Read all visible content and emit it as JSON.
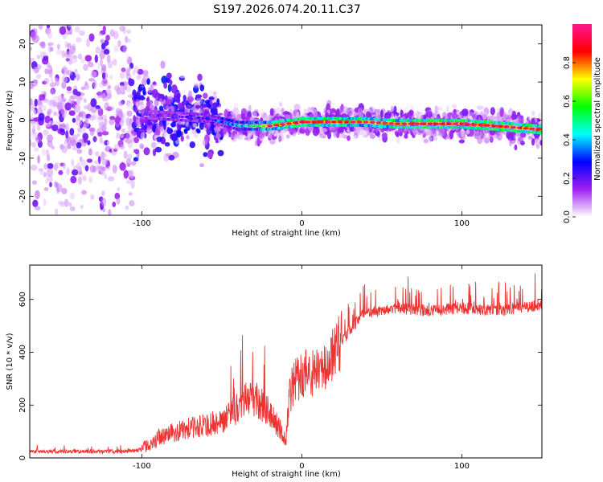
{
  "title": "S197.2026.074.20.11.C37",
  "chart_data": [
    {
      "type": "heatmap",
      "name": "spectrogram",
      "xlabel": "Height of straight line (km)",
      "ylabel": "Frequency (Hz)",
      "xlim": [
        -170,
        150
      ],
      "ylim": [
        -25,
        25
      ],
      "xticks": [
        -100,
        0,
        100
      ],
      "yticks": [
        -20,
        -10,
        0,
        10,
        20
      ],
      "colorbar": {
        "label": "Normalized spectral amplitude",
        "range": [
          0,
          1
        ],
        "ticks": [
          0.0,
          0.2,
          0.4,
          0.6,
          0.8
        ],
        "tick_labels": [
          "0.0",
          "0.2",
          "0.4",
          "0.6",
          "0.8"
        ],
        "colormap": [
          "#ffffff",
          "#a020f0",
          "#0000ff",
          "#00ffff",
          "#00ff00",
          "#ffff00",
          "#ff0000",
          "#ff1493"
        ]
      },
      "ridge": {
        "x": [
          -100,
          -80,
          -60,
          -40,
          -20,
          0,
          20,
          40,
          60,
          80,
          100,
          120,
          150
        ],
        "frequency": [
          1.5,
          1,
          0.5,
          -1.5,
          -1.5,
          -0.5,
          -0.5,
          -0.5,
          -1,
          -1,
          -1,
          -1.5,
          -2.5
        ],
        "peak_amplitude": [
          0.25,
          0.3,
          0.35,
          0.5,
          0.75,
          0.9,
          0.85,
          0.8,
          0.85,
          0.9,
          0.9,
          0.9,
          0.85
        ]
      }
    },
    {
      "type": "line",
      "name": "snr",
      "xlabel": "Height of straight line (km)",
      "ylabel": "SNR (10 * v/v)",
      "xlim": [
        -170,
        150
      ],
      "ylim": [
        0,
        730
      ],
      "xticks": [
        -100,
        0,
        100
      ],
      "yticks": [
        0,
        200,
        400,
        600
      ],
      "color": "#ee3333",
      "trend": {
        "x": [
          -170,
          -150,
          -130,
          -110,
          -100,
          -95,
          -90,
          -80,
          -70,
          -60,
          -50,
          -40,
          -35,
          -30,
          -20,
          -15,
          -10,
          -8,
          -5,
          0,
          5,
          10,
          15,
          20,
          25,
          30,
          40,
          50,
          60,
          80,
          100,
          120,
          150
        ],
        "y": [
          22,
          22,
          22,
          22,
          30,
          45,
          65,
          85,
          100,
          110,
          125,
          170,
          210,
          200,
          160,
          110,
          55,
          210,
          255,
          290,
          300,
          290,
          310,
          370,
          430,
          480,
          540,
          555,
          560,
          550,
          560,
          550,
          570
        ]
      }
    }
  ]
}
